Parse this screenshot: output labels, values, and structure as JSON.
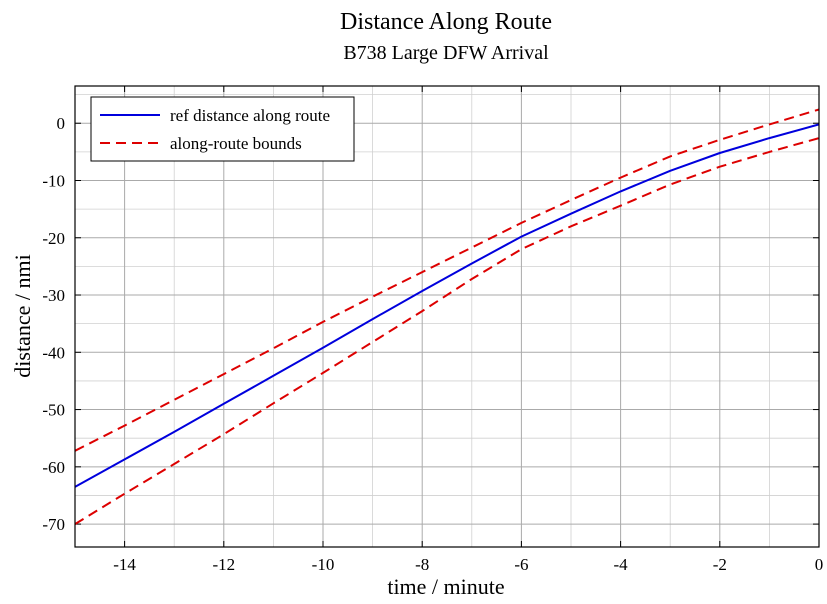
{
  "chart_data": {
    "type": "line",
    "title": "Distance Along Route",
    "subtitle": "B738 Large DFW Arrival",
    "xlabel": "time / minute",
    "ylabel": "distance / nmi",
    "xlim": [
      -15,
      0
    ],
    "ylim": [
      -74,
      6.5
    ],
    "x_ticks": [
      -14,
      -12,
      -10,
      -8,
      -6,
      -4,
      -2,
      0
    ],
    "y_ticks": [
      0,
      -10,
      -20,
      -30,
      -40,
      -50,
      -60,
      -70
    ],
    "x_tick_labels": [
      "-14",
      "-12",
      "-10",
      "-8",
      "-6",
      "-4",
      "-2",
      "0"
    ],
    "y_tick_labels": [
      "0",
      "-10",
      "-20",
      "-30",
      "-40",
      "-50",
      "-60",
      "-70"
    ],
    "grid": true,
    "legend_position": "top-left",
    "legend": {
      "ref_label": "ref distance along route",
      "bounds_label": "along-route bounds"
    },
    "colors": {
      "ref": "#0000dd",
      "bounds": "#dd0000",
      "grid": "#aaaaaa"
    },
    "series": [
      {
        "name": "ref distance along route",
        "style": "solid",
        "x": [
          -15,
          -14,
          -13,
          -12,
          -11,
          -10,
          -9,
          -8,
          -7,
          -6,
          -5,
          -4,
          -3,
          -2,
          -1,
          0
        ],
        "y": [
          -63.5,
          -58.7,
          -53.9,
          -49.0,
          -44.1,
          -39.2,
          -34.2,
          -29.3,
          -24.5,
          -19.8,
          -15.8,
          -11.9,
          -8.3,
          -5.2,
          -2.6,
          -0.2
        ]
      },
      {
        "name": "along-route bounds",
        "style": "dashed",
        "x": [
          -15,
          -14,
          -13,
          -12,
          -11,
          -10,
          -9,
          -8,
          -7,
          -6,
          -5,
          -4,
          -3,
          -2,
          -1,
          0
        ],
        "y": [
          -57.2,
          -52.8,
          -48.3,
          -43.8,
          -39.3,
          -34.7,
          -30.3,
          -26.0,
          -21.7,
          -17.4,
          -13.4,
          -9.5,
          -5.8,
          -2.9,
          -0.2,
          2.4
        ]
      },
      {
        "name": "",
        "style": "dashed",
        "x": [
          -15,
          -14,
          -13,
          -12,
          -11,
          -10,
          -9,
          -8,
          -7,
          -6,
          -5,
          -4,
          -3,
          -2,
          -1,
          0
        ],
        "y": [
          -70.0,
          -64.7,
          -59.5,
          -54.3,
          -48.9,
          -43.6,
          -38.2,
          -32.8,
          -27.2,
          -22.0,
          -18.0,
          -14.4,
          -10.7,
          -7.6,
          -5.0,
          -2.6
        ]
      }
    ]
  }
}
